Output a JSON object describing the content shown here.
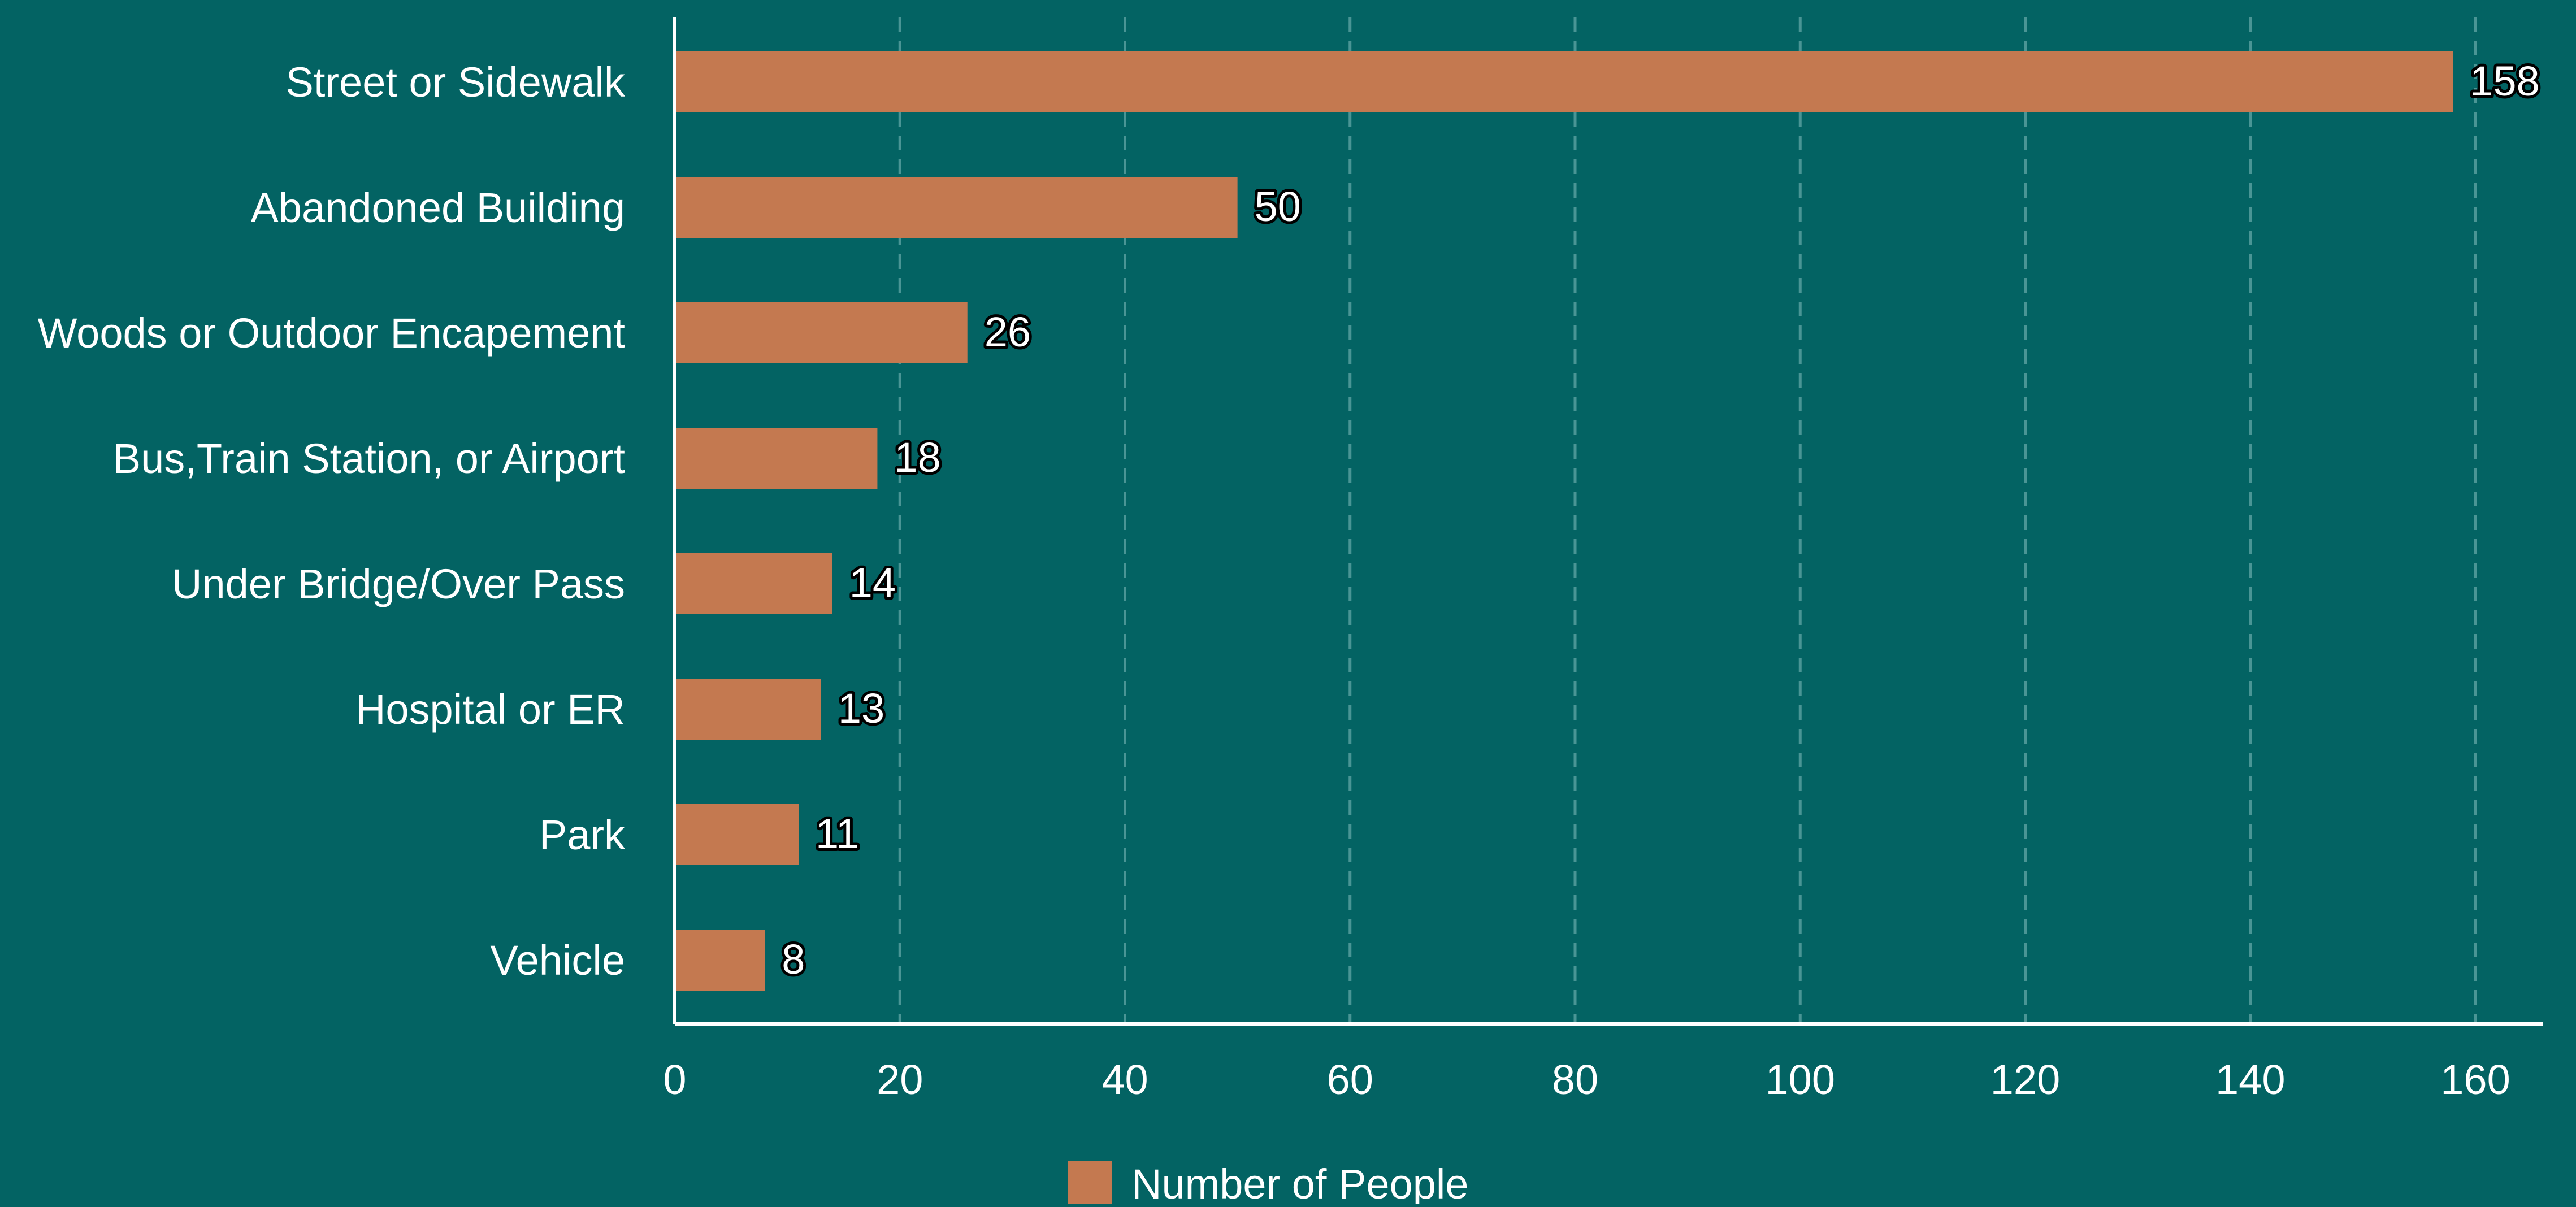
{
  "chart_data": {
    "type": "bar",
    "orientation": "horizontal",
    "categories": [
      "Street or Sidewalk",
      "Abandoned Building",
      "Woods or Outdoor Encapement",
      "Bus,Train Station, or Airport",
      "Under Bridge/Over Pass",
      "Hospital or ER",
      "Park",
      "Vehicle"
    ],
    "series": [
      {
        "name": "Number of People",
        "values": [
          158,
          50,
          26,
          18,
          14,
          13,
          11,
          8
        ],
        "color": "#c47950"
      }
    ],
    "xlim": [
      0,
      160
    ],
    "x_ticks": [
      0,
      20,
      40,
      60,
      80,
      100,
      120,
      140,
      160
    ],
    "grid": "vertical dashed",
    "legend_position": "bottom",
    "colors": {
      "background": "#036363",
      "bar": "#c47950",
      "grid": "#4a9595",
      "axis": "#ffffff",
      "text": "#ffffff"
    }
  }
}
